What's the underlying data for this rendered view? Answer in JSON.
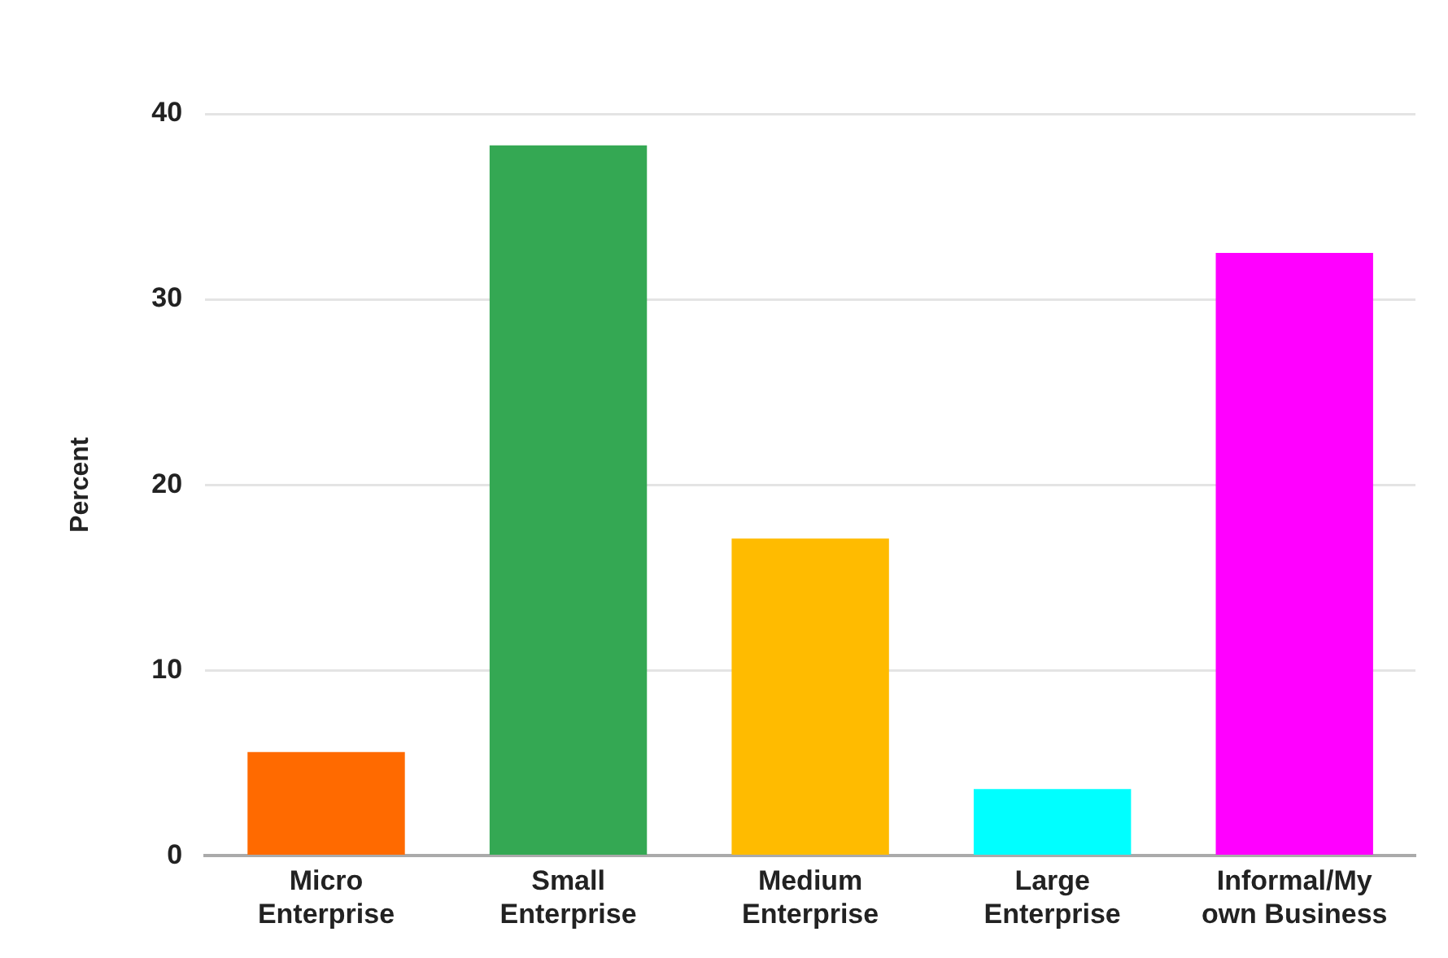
{
  "chart_data": {
    "type": "bar",
    "ylabel": "Percent",
    "categories": [
      "Micro Enterprise",
      "Small Enterprise",
      "Medium Enterprise",
      "Large Enterprise",
      "Informal/My own Business"
    ],
    "values": [
      5.6,
      38.3,
      17.1,
      3.6,
      32.5
    ],
    "colors": [
      "#ff6a00",
      "#34a853",
      "#ffbb00",
      "#00ffff",
      "#ff00ff"
    ],
    "ylim": [
      0,
      40
    ],
    "yticks": [
      0,
      10,
      20,
      30,
      40
    ],
    "grid": "y",
    "legend": false
  }
}
